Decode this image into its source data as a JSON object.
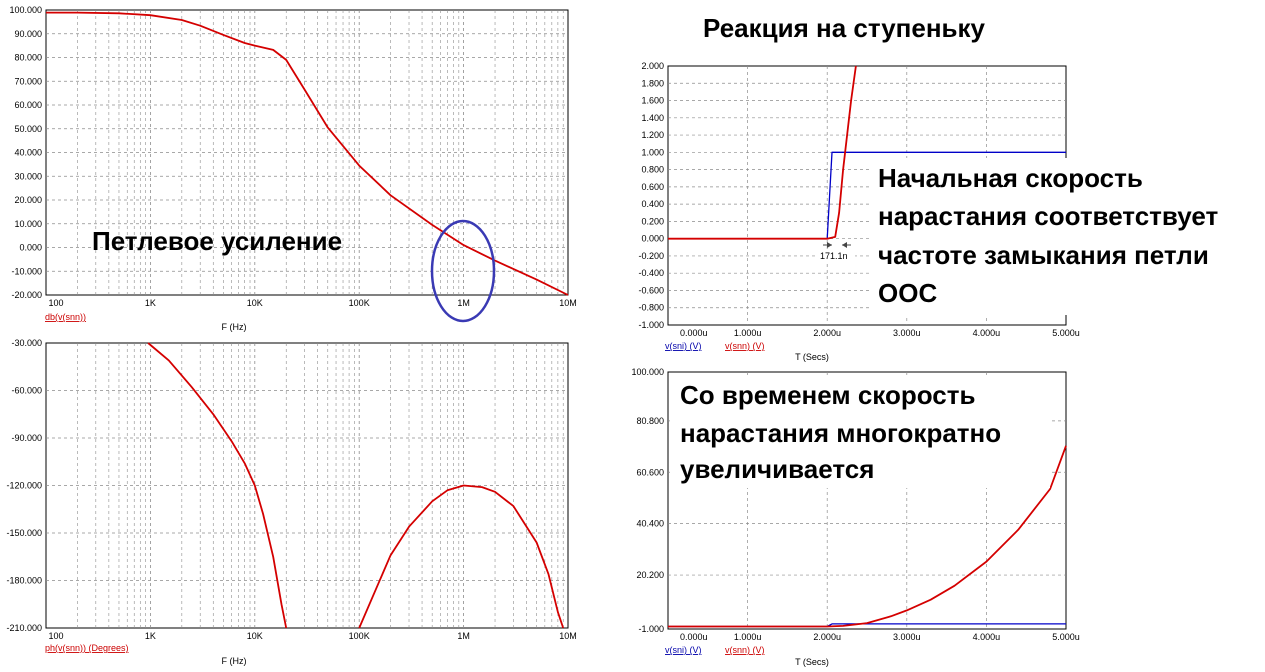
{
  "annotations": {
    "step_response_title": "Реакция на ступеньку",
    "loop_gain": "Петлевое усиление",
    "initial_rate": [
      "Начальная скорость",
      "нарастания соответствует",
      "частоте замыкания петли",
      "ООС"
    ],
    "later_rate": [
      "Со временем скорость",
      "нарастания многократно",
      "увеличивается"
    ],
    "delay_marker": "171.1n"
  },
  "colors": {
    "red_trace": "#d40000",
    "blue_trace": "#0000c8",
    "circle": "#3a3ab4",
    "grid": "#8c8c8c"
  },
  "chart_data": [
    {
      "id": "gain",
      "type": "line",
      "x_scale": "log",
      "xlim": [
        100,
        10000000
      ],
      "ylim": [
        -20,
        100
      ],
      "xlabel": "F (Hz)",
      "x_tick_labels": [
        "100",
        "1K",
        "10K",
        "100K",
        "1M",
        "10M"
      ],
      "x_tick_values": [
        100,
        1000,
        10000,
        100000,
        1000000,
        10000000
      ],
      "y_tick_labels": [
        "100.000",
        "90.000",
        "80.000",
        "70.000",
        "60.000",
        "50.000",
        "40.000",
        "30.000",
        "20.000",
        "10.000",
        "0.000",
        "-10.000",
        "-20.000"
      ],
      "y_tick_values": [
        100,
        90,
        80,
        70,
        60,
        50,
        40,
        30,
        20,
        10,
        0,
        -10,
        -20
      ],
      "series": [
        {
          "name": "db(v(snn))",
          "color": "#d40000",
          "x": [
            100,
            200,
            500,
            1000,
            2000,
            3000,
            5000,
            8000,
            10000,
            15000,
            20000,
            30000,
            50000,
            100000,
            200000,
            500000,
            1000000,
            2000000,
            5000000,
            10000000
          ],
          "y": [
            98.9,
            98.9,
            98.6,
            97.8,
            95.8,
            93.4,
            89.5,
            86.1,
            85.0,
            83.2,
            79.0,
            66.5,
            50.5,
            34.5,
            22.0,
            9.5,
            1.0,
            -5.5,
            -13.5,
            -20.0
          ]
        }
      ]
    },
    {
      "id": "phase",
      "type": "line",
      "x_scale": "log",
      "xlim": [
        100,
        10000000
      ],
      "ylim": [
        -210,
        -30
      ],
      "xlabel": "F (Hz)",
      "x_tick_labels": [
        "100",
        "1K",
        "10K",
        "100K",
        "1M",
        "10M"
      ],
      "x_tick_values": [
        100,
        1000,
        10000,
        100000,
        1000000,
        10000000
      ],
      "y_tick_labels": [
        "-30.000",
        "-60.000",
        "-90.000",
        "-120.000",
        "-150.000",
        "-180.000",
        "-210.000"
      ],
      "y_tick_values": [
        -30,
        -60,
        -90,
        -120,
        -150,
        -180,
        -210
      ],
      "series": [
        {
          "name": "ph(v(snn)) (Degrees)",
          "color": "#d40000",
          "segments": [
            {
              "x": [
                950,
                1500,
                2500,
                4000,
                6000,
                8000,
                10000,
                12000,
                15000,
                18000,
                20000
              ],
              "y": [
                -30,
                -41,
                -58,
                -75,
                -92,
                -106,
                -120,
                -138,
                -165,
                -195,
                -210
              ]
            },
            {
              "x": [
                100000,
                150000,
                200000,
                300000,
                500000,
                700000,
                1000000,
                1500000,
                2000000,
                3000000,
                5000000,
                6500000,
                8000000,
                9000000
              ],
              "y": [
                -210,
                -183,
                -164,
                -146,
                -130,
                -123,
                -120,
                -121,
                -124,
                -133,
                -156,
                -176,
                -200,
                -212
              ]
            }
          ]
        }
      ]
    },
    {
      "id": "step1",
      "type": "line",
      "xlim": [
        0,
        5
      ],
      "ylim": [
        -1,
        2
      ],
      "xlabel": "T (Secs)",
      "x_tick_labels": [
        "0.000u",
        "1.000u",
        "2.000u",
        "3.000u",
        "4.000u",
        "5.000u"
      ],
      "x_tick_values": [
        0,
        1,
        2,
        3,
        4,
        5
      ],
      "y_tick_labels": [
        "2.000",
        "1.800",
        "1.600",
        "1.400",
        "1.200",
        "1.000",
        "0.800",
        "0.600",
        "0.400",
        "0.200",
        "0.000",
        "-0.200",
        "-0.400",
        "-0.600",
        "-0.800",
        "-1.000"
      ],
      "y_tick_values": [
        2.0,
        1.8,
        1.6,
        1.4,
        1.2,
        1.0,
        0.8,
        0.6,
        0.4,
        0.2,
        0.0,
        -0.2,
        -0.4,
        -0.6,
        -0.8,
        -1.0
      ],
      "series": [
        {
          "name": "v(sni) (V)",
          "color": "#0000c8",
          "x": [
            0,
            2.0,
            2.03,
            2.06,
            5.0
          ],
          "y": [
            0,
            0,
            0.5,
            1.0,
            1.0
          ]
        },
        {
          "name": "v(snn) (V)",
          "color": "#d40000",
          "x": [
            0,
            2.0,
            2.1,
            2.15,
            2.2,
            2.25,
            2.3,
            2.36
          ],
          "y": [
            0,
            0,
            0.02,
            0.3,
            0.8,
            1.2,
            1.6,
            2.0
          ]
        }
      ]
    },
    {
      "id": "step2",
      "type": "line",
      "xlim": [
        0,
        5
      ],
      "ylim": [
        -1,
        100
      ],
      "xlabel": "T (Secs)",
      "x_tick_labels": [
        "0.000u",
        "1.000u",
        "2.000u",
        "3.000u",
        "4.000u",
        "5.000u"
      ],
      "x_tick_values": [
        0,
        1,
        2,
        3,
        4,
        5
      ],
      "y_tick_labels": [
        "100.000",
        "80.800",
        "60.600",
        "40.400",
        "20.200",
        "-1.000"
      ],
      "y_tick_values": [
        100,
        80.8,
        60.6,
        40.4,
        20.2,
        -1
      ],
      "series": [
        {
          "name": "v(sni) (V)",
          "color": "#0000c8",
          "x": [
            0,
            2.0,
            2.06,
            5.0
          ],
          "y": [
            0,
            0,
            1,
            1
          ]
        },
        {
          "name": "v(snn) (V)",
          "color": "#d40000",
          "x": [
            0,
            2.0,
            2.2,
            2.5,
            2.8,
            3.0,
            3.3,
            3.6,
            4.0,
            4.4,
            4.8,
            5.0
          ],
          "y": [
            0,
            0,
            0.2,
            1.3,
            4.0,
            6.3,
            10.5,
            16.0,
            25.5,
            38.0,
            54.0,
            71.0
          ]
        }
      ]
    }
  ]
}
